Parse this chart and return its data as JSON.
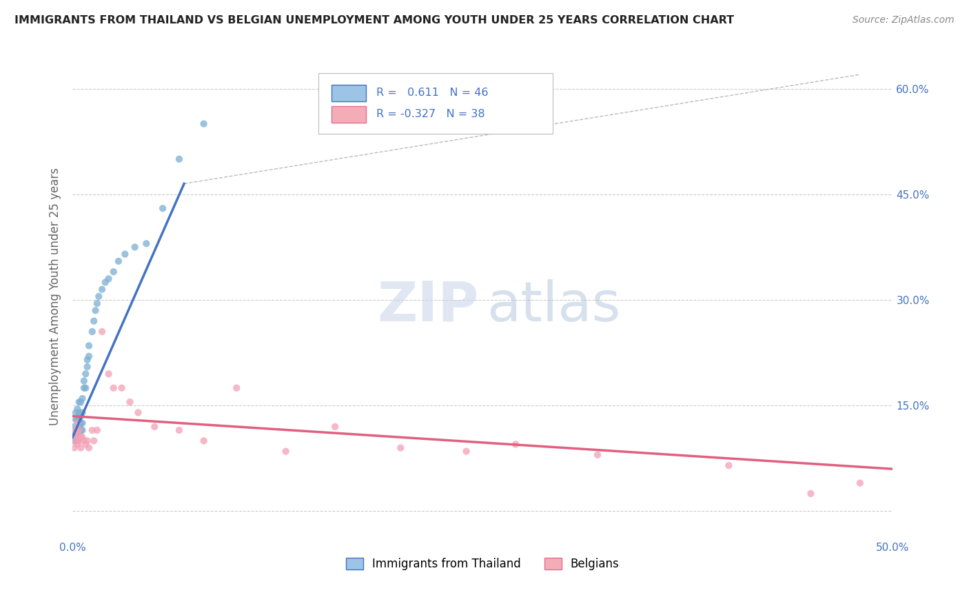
{
  "title": "IMMIGRANTS FROM THAILAND VS BELGIAN UNEMPLOYMENT AMONG YOUTH UNDER 25 YEARS CORRELATION CHART",
  "source": "Source: ZipAtlas.com",
  "ylabel": "Unemployment Among Youth under 25 years",
  "xlabel": "",
  "xlim": [
    0.0,
    0.5
  ],
  "ylim": [
    -0.04,
    0.65
  ],
  "xticks": [
    0.0,
    0.1,
    0.2,
    0.3,
    0.4,
    0.5
  ],
  "xticklabels": [
    "0.0%",
    "",
    "",
    "",
    "",
    "50.0%"
  ],
  "yticks": [
    0.0,
    0.15,
    0.3,
    0.45,
    0.6
  ],
  "yticklabels": [
    "",
    "",
    "",
    "",
    ""
  ],
  "legend": {
    "blue_r": "0.611",
    "blue_n": "46",
    "pink_r": "-0.327",
    "pink_n": "38",
    "label1": "Immigrants from Thailand",
    "label2": "Belgians"
  },
  "blue_scatter": {
    "x": [
      0.001,
      0.001,
      0.002,
      0.002,
      0.002,
      0.003,
      0.003,
      0.003,
      0.003,
      0.004,
      0.004,
      0.004,
      0.004,
      0.004,
      0.005,
      0.005,
      0.005,
      0.005,
      0.006,
      0.006,
      0.006,
      0.006,
      0.007,
      0.007,
      0.008,
      0.008,
      0.009,
      0.009,
      0.01,
      0.01,
      0.012,
      0.013,
      0.014,
      0.015,
      0.016,
      0.018,
      0.02,
      0.022,
      0.025,
      0.028,
      0.032,
      0.038,
      0.045,
      0.055,
      0.065,
      0.08
    ],
    "y": [
      0.1,
      0.12,
      0.11,
      0.13,
      0.14,
      0.1,
      0.115,
      0.13,
      0.145,
      0.11,
      0.12,
      0.13,
      0.14,
      0.155,
      0.115,
      0.125,
      0.135,
      0.155,
      0.115,
      0.125,
      0.14,
      0.16,
      0.175,
      0.185,
      0.175,
      0.195,
      0.205,
      0.215,
      0.22,
      0.235,
      0.255,
      0.27,
      0.285,
      0.295,
      0.305,
      0.315,
      0.325,
      0.33,
      0.34,
      0.355,
      0.365,
      0.375,
      0.38,
      0.43,
      0.5,
      0.55
    ],
    "color": "#7BAFD4",
    "alpha": 0.75,
    "size": 55
  },
  "pink_scatter": {
    "x": [
      0.001,
      0.001,
      0.002,
      0.002,
      0.003,
      0.003,
      0.003,
      0.004,
      0.004,
      0.005,
      0.005,
      0.006,
      0.007,
      0.008,
      0.009,
      0.01,
      0.012,
      0.013,
      0.015,
      0.018,
      0.022,
      0.025,
      0.03,
      0.035,
      0.04,
      0.05,
      0.065,
      0.08,
      0.1,
      0.13,
      0.16,
      0.2,
      0.24,
      0.27,
      0.32,
      0.4,
      0.45,
      0.48
    ],
    "y": [
      0.09,
      0.11,
      0.1,
      0.115,
      0.095,
      0.11,
      0.125,
      0.1,
      0.115,
      0.09,
      0.105,
      0.105,
      0.1,
      0.095,
      0.1,
      0.09,
      0.115,
      0.1,
      0.115,
      0.255,
      0.195,
      0.175,
      0.175,
      0.155,
      0.14,
      0.12,
      0.115,
      0.1,
      0.175,
      0.085,
      0.12,
      0.09,
      0.085,
      0.095,
      0.08,
      0.065,
      0.025,
      0.04
    ],
    "color": "#F4A0B5",
    "alpha": 0.75,
    "size": 55
  },
  "blue_line": {
    "x": [
      0.0,
      0.068
    ],
    "y": [
      0.105,
      0.465
    ],
    "color": "#4472C4",
    "linewidth": 2.5
  },
  "pink_line": {
    "x": [
      0.0,
      0.5
    ],
    "y": [
      0.135,
      0.06
    ],
    "color": "#E06080",
    "linewidth": 2.5
  },
  "trend_line": {
    "x": [
      0.068,
      0.48
    ],
    "y": [
      0.465,
      0.62
    ],
    "color": "#BBBBBB",
    "linewidth": 1.0,
    "linestyle": "--"
  },
  "watermark_zip": "ZIP",
  "watermark_atlas": "atlas",
  "background_color": "#FFFFFF",
  "grid_color": "#CCCCCC",
  "right_yticks": [
    0.15,
    0.3,
    0.45,
    0.6
  ],
  "right_yticklabels": [
    "15.0%",
    "30.0%",
    "45.0%",
    "60.0%"
  ]
}
